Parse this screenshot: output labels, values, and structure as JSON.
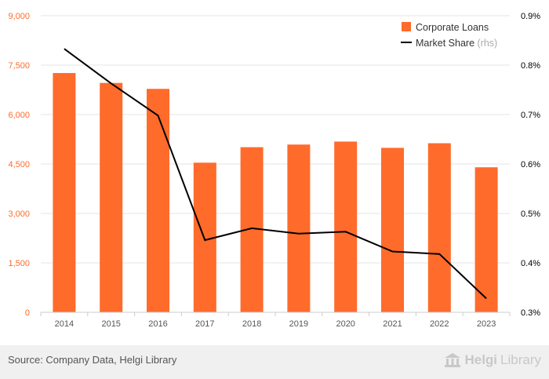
{
  "chart_data": {
    "type": "bar",
    "categories": [
      "2014",
      "2015",
      "2016",
      "2017",
      "2018",
      "2019",
      "2020",
      "2021",
      "2022",
      "2023"
    ],
    "series": [
      {
        "name": "Corporate Loans",
        "type": "bar",
        "axis": "left",
        "color": "#ff6b2b",
        "values": [
          7260,
          6960,
          6780,
          4540,
          5010,
          5090,
          5180,
          4990,
          5130,
          4400
        ]
      },
      {
        "name": "Market Share",
        "type": "line",
        "axis": "right",
        "color": "#000000",
        "values": [
          0.833,
          0.763,
          0.698,
          0.446,
          0.47,
          0.459,
          0.463,
          0.423,
          0.418,
          0.328
        ]
      }
    ],
    "legend_rhs_suffix": "(rhs)",
    "y_left": {
      "min": 0,
      "max": 9000,
      "ticks": [
        "0",
        "1,500",
        "3,000",
        "4,500",
        "6,000",
        "7,500",
        "9,000"
      ],
      "tick_values": [
        0,
        1500,
        3000,
        4500,
        6000,
        7500,
        9000
      ]
    },
    "y_right": {
      "min": 0.3,
      "max": 0.9,
      "ticks": [
        "0.3%",
        "0.4%",
        "0.5%",
        "0.6%",
        "0.7%",
        "0.8%",
        "0.9%"
      ],
      "tick_values": [
        0.3,
        0.4,
        0.5,
        0.6,
        0.7,
        0.8,
        0.9
      ]
    },
    "grid": true,
    "legend_position": "top-right"
  },
  "colors": {
    "bar": "#ff6b2b",
    "left_axis_text": "#ff6b2b",
    "line": "#000000",
    "grid": "#e6e6e6"
  },
  "footer": {
    "source": "Source: Company Data, Helgi Library",
    "logo_text_bold": "Helgi",
    "logo_text_light": "Library"
  }
}
